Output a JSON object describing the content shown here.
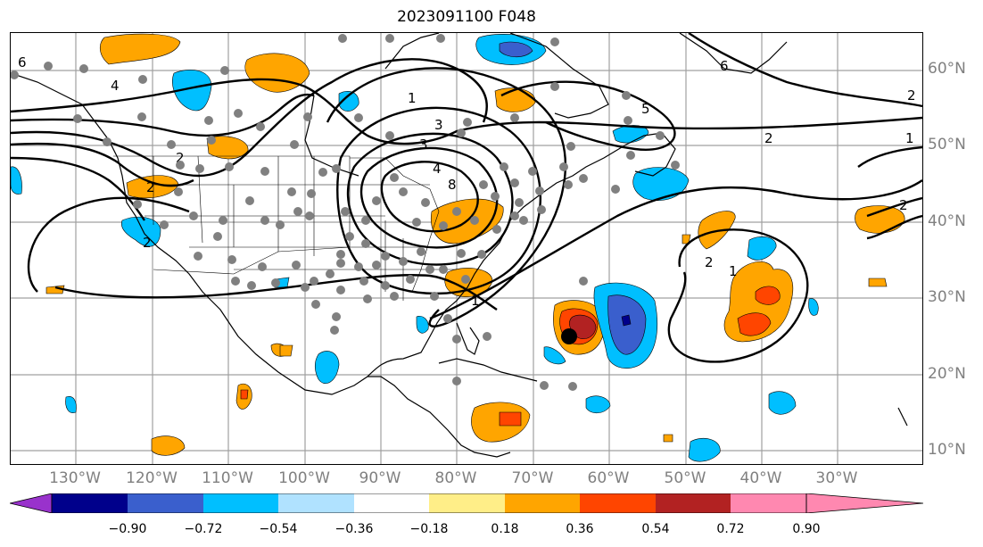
{
  "title": "2023091100 F048",
  "lat_labels": [
    "60°N",
    "50°N",
    "40°N",
    "30°N",
    "20°N",
    "10°N"
  ],
  "lon_labels": [
    "130°W",
    "120°W",
    "110°W",
    "100°W",
    "90°W",
    "80°W",
    "70°W",
    "60°W",
    "50°W",
    "40°W",
    "30°W"
  ],
  "colorbar": {
    "ticks": [
      "−0.90",
      "−0.72",
      "−0.54",
      "−0.36",
      "−0.18",
      "0.18",
      "0.36",
      "0.54",
      "0.72",
      "0.90"
    ],
    "colors": [
      "#9932cc",
      "#00008b",
      "#3a5fcd",
      "#00bfff",
      "#b0e2ff",
      "#ffffff",
      "#ffee88",
      "#ffa500",
      "#ff4500",
      "#b22222",
      "#ff88b0"
    ]
  },
  "contour_labels": [
    "6",
    "6",
    "4",
    "2",
    "2",
    "2",
    "1",
    "3",
    "3",
    "4",
    "8",
    "1",
    "5",
    "2",
    "1",
    "2",
    "1",
    "2",
    "2"
  ],
  "colors": {
    "positive": "#ffa500",
    "strong_positive": "#ff4500",
    "max_positive": "#b22222",
    "negative": "#00bfff",
    "strong_negative": "#3a5fcd",
    "max_negative": "#00008b",
    "grid": "#a0a0a0",
    "stations": "#808080"
  }
}
